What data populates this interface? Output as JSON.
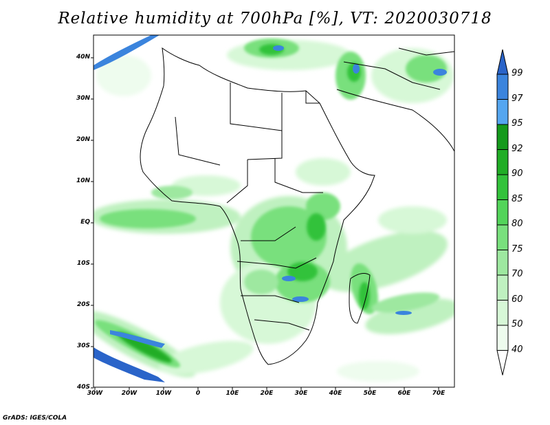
{
  "title": "Relative humidity at 700hPa [%], VT: 2020030718",
  "credit": "GrADS: IGES/COLA",
  "latitude_labels": [
    "40N",
    "30N",
    "20N",
    "10N",
    "EQ",
    "10S",
    "20S",
    "30S",
    "40S"
  ],
  "longitude_labels": [
    "30W",
    "20W",
    "10W",
    "0",
    "10E",
    "20E",
    "30E",
    "40E",
    "50E",
    "60E",
    "70E"
  ],
  "colorbar": {
    "levels": [
      "99",
      "97",
      "95",
      "92",
      "90",
      "85",
      "80",
      "75",
      "70",
      "60",
      "50",
      "40"
    ],
    "colors": [
      "#2a64c9",
      "#3b84dd",
      "#55a6f0",
      "#159a1c",
      "#21ad26",
      "#33c23b",
      "#53d45a",
      "#79e07d",
      "#9ee8a0",
      "#bff1c0",
      "#d7f8d7",
      "#eefcee",
      "#ffffff"
    ]
  }
}
